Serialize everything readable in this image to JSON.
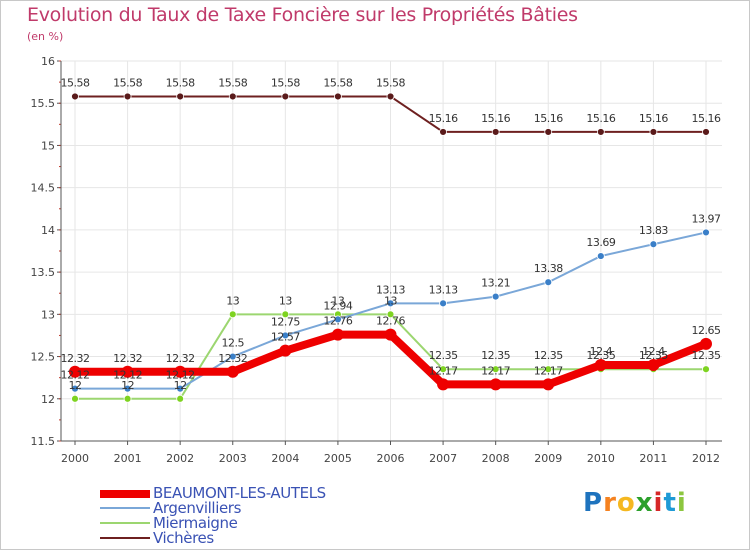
{
  "chart_data": {
    "type": "line",
    "title": "Evolution du Taux de Taxe Foncière sur les Propriétés Bâties",
    "unit_label": "(en %)",
    "xlabel": "",
    "ylabel": "",
    "categories": [
      "2000",
      "2001",
      "2002",
      "2003",
      "2004",
      "2005",
      "2006",
      "2007",
      "2008",
      "2009",
      "2010",
      "2011",
      "2012"
    ],
    "ylim": [
      11.5,
      16
    ],
    "yticks": [
      "11.5",
      "12",
      "12.5",
      "13",
      "13.5",
      "14",
      "14.5",
      "15",
      "15.5",
      "16"
    ],
    "grid": true,
    "legend_position": "bottom-left",
    "series": [
      {
        "name": "Vichères",
        "color": "#6e2020",
        "marker_color": "#5a1a1a",
        "values": [
          15.58,
          15.58,
          15.58,
          15.58,
          15.58,
          15.58,
          15.58,
          15.16,
          15.16,
          15.16,
          15.16,
          15.16,
          15.16
        ],
        "labels": [
          "15.58",
          "15.58",
          "15.58",
          "15.58",
          "15.58",
          "15.58",
          "15.58",
          "15.16",
          "15.16",
          "15.16",
          "15.16",
          "15.16",
          "15.16"
        ]
      },
      {
        "name": "Miermaigne",
        "color": "#9cd670",
        "marker_color": "#7ed321",
        "values": [
          12,
          12,
          12,
          13,
          13,
          13,
          13,
          12.35,
          12.35,
          12.35,
          12.35,
          12.35,
          12.35
        ],
        "labels": [
          "12",
          "12",
          "12",
          "13",
          "13",
          "13",
          "13",
          "12.35",
          "12.35",
          "12.35",
          "12.35",
          "12.35",
          "12.35"
        ]
      },
      {
        "name": "Argenvilliers",
        "color": "#7aa7d8",
        "marker_color": "#3a7fc8",
        "values": [
          12.12,
          12.12,
          12.12,
          12.5,
          12.75,
          12.94,
          13.13,
          13.13,
          13.21,
          13.38,
          13.69,
          13.83,
          13.97
        ],
        "labels": [
          "12.12",
          "12.12",
          "12.12",
          "12.5",
          "12.75",
          "12.94",
          "13.13",
          "13.13",
          "13.21",
          "13.38",
          "13.69",
          "13.83",
          "13.97"
        ]
      },
      {
        "name": "BEAUMONT-LES-AUTELS",
        "color": "#ee0000",
        "marker_color": "#ee0000",
        "values": [
          12.32,
          12.32,
          12.32,
          12.32,
          12.57,
          12.76,
          12.76,
          12.17,
          12.17,
          12.17,
          12.4,
          12.4,
          12.65
        ],
        "labels": [
          "12.32",
          "12.32",
          "12.32",
          "12.32",
          "12.57",
          "12.76",
          "12.76",
          "12.17",
          "12.17",
          "12.17",
          "12.4",
          "12.4",
          "12.65"
        ]
      }
    ]
  },
  "legend": {
    "items": [
      {
        "label": "BEAUMONT-LES-AUTELS",
        "color": "#ee0000"
      },
      {
        "label": "Argenvilliers",
        "color": "#7aa7d8"
      },
      {
        "label": "Miermaigne",
        "color": "#9cd670"
      },
      {
        "label": "Vichères",
        "color": "#6e2020"
      }
    ]
  },
  "brand": {
    "letters": [
      "P",
      "r",
      "o",
      "x",
      "i",
      "t",
      "i"
    ],
    "colors": [
      "#1e73be",
      "#f58220",
      "#f5b820",
      "#2ca02c",
      "#d62728",
      "#1e9ad6",
      "#8cc63f"
    ]
  }
}
